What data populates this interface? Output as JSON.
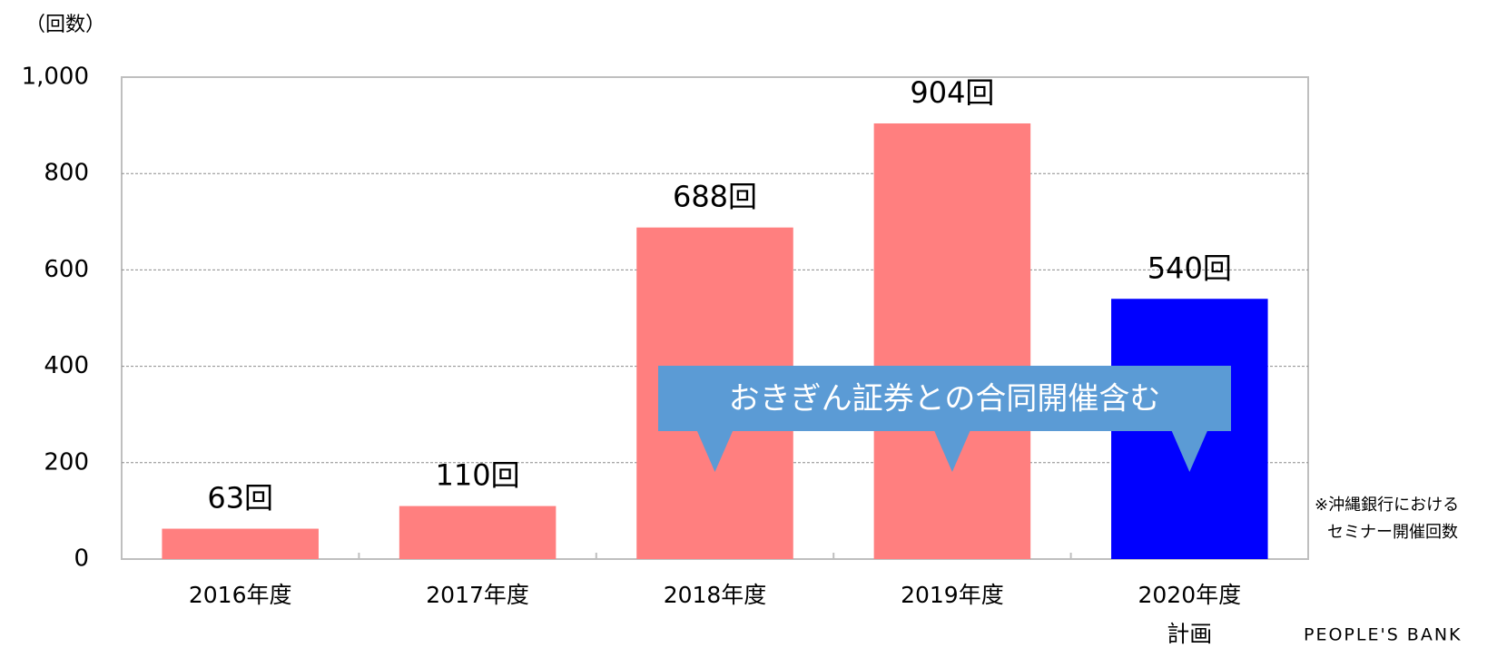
{
  "chart_data": {
    "type": "bar",
    "y_unit_label": "（回数）",
    "categories": [
      "2016年度",
      "2017年度",
      "2018年度",
      "2019年度",
      "2020年度"
    ],
    "plan_label": "計画",
    "values": [
      63,
      110,
      688,
      904,
      540
    ],
    "value_labels": [
      "63回",
      "110回",
      "688回",
      "904回",
      "540回"
    ],
    "colors": [
      "#ff7f7f",
      "#ff7f7f",
      "#ff7f7f",
      "#ff7f7f",
      "#0000ff"
    ],
    "ylim": [
      0,
      1000
    ],
    "yticks": [
      0,
      200,
      400,
      600,
      800,
      {
        "value": 1000,
        "label": "1,000"
      }
    ],
    "grid": true,
    "callout": "おきぎん証券との合同開催含む",
    "note": [
      "※沖縄銀行における",
      "セミナー開催回数"
    ],
    "footer": "PEOPLE'S BANK"
  }
}
